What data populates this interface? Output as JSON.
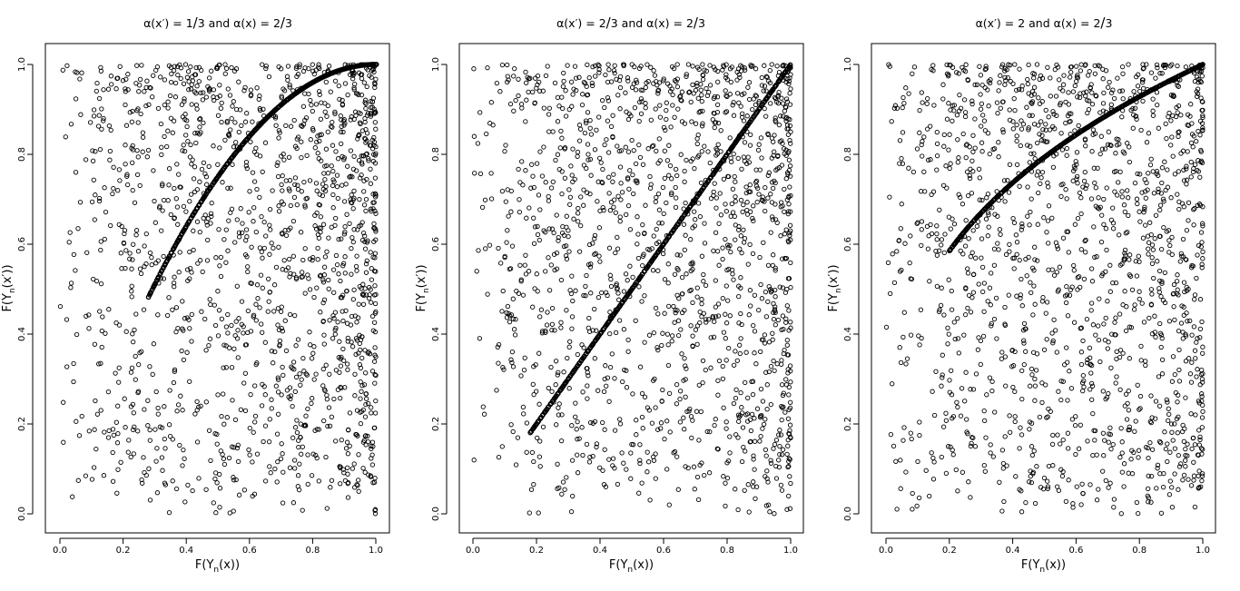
{
  "figure": {
    "panel_count": 3
  },
  "chart_data": [
    {
      "type": "scatter",
      "title": "α(x′) = 1/3 and α(x) = 2/3",
      "title_parts": {
        "prefix": "α(x′) = 1",
        "mid": "3 and α(x) = 2",
        "suffix": "3"
      },
      "xlabel": "F(Yn(x))",
      "ylabel": "F(Yn(x′))",
      "xlim": [
        0,
        1
      ],
      "ylim": [
        0,
        1
      ],
      "xticks": [
        "0.0",
        "0.2",
        "0.4",
        "0.6",
        "0.8",
        "1.0"
      ],
      "yticks": [
        "0.0",
        "0.2",
        "0.4",
        "0.6",
        "0.8",
        "1.0"
      ],
      "grid": false,
      "series": [
        {
          "kind": "random_cloud",
          "count": 1500,
          "bias": {
            "x": 0.75,
            "y": 0.7
          }
        },
        {
          "kind": "curve",
          "x_range": [
            0.28,
            1.0
          ],
          "relation": "y = 1 - (1 - x)^2"
        }
      ]
    },
    {
      "type": "scatter",
      "title": "α(x′) = 2/3 and α(x) = 2/3",
      "title_parts": {
        "prefix": "α(x′) = 2",
        "mid": "3 and α(x) = 2",
        "suffix": "3"
      },
      "xlabel": "F(Yn(x))",
      "ylabel": "F(Yn(x′))",
      "xlim": [
        0,
        1
      ],
      "ylim": [
        0,
        1
      ],
      "xticks": [
        "0.0",
        "0.2",
        "0.4",
        "0.6",
        "0.8",
        "1.0"
      ],
      "yticks": [
        "0.0",
        "0.2",
        "0.4",
        "0.6",
        "0.8",
        "1.0"
      ],
      "grid": false,
      "series": [
        {
          "kind": "random_cloud",
          "count": 1500,
          "bias": {
            "x": 0.75,
            "y": 0.7
          }
        },
        {
          "kind": "curve",
          "x_range": [
            0.18,
            1.0
          ],
          "relation": "y = x"
        }
      ]
    },
    {
      "type": "scatter",
      "title": "α(x′) = 2 and α(x) = 2/3",
      "title_parts": {
        "prefix": "α(x′) = 2 and α(x) = 2",
        "mid": "",
        "suffix": "3"
      },
      "xlabel": "F(Yn(x))",
      "ylabel": "F(Yn(x′))",
      "xlim": [
        0,
        1
      ],
      "ylim": [
        0,
        1
      ],
      "xticks": [
        "0.0",
        "0.2",
        "0.4",
        "0.6",
        "0.8",
        "1.0"
      ],
      "yticks": [
        "0.0",
        "0.2",
        "0.4",
        "0.6",
        "0.8",
        "1.0"
      ],
      "grid": false,
      "series": [
        {
          "kind": "random_cloud",
          "count": 1500,
          "bias": {
            "x": 0.6,
            "y": 0.7
          }
        },
        {
          "kind": "curve",
          "x_range": [
            0.2,
            1.0
          ],
          "relation": "y = x^(1/3)"
        }
      ]
    }
  ]
}
